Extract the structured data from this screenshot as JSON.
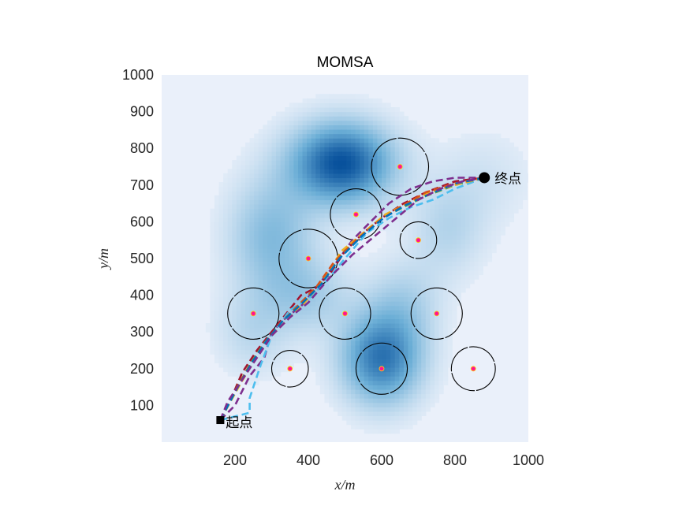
{
  "chart_data": {
    "type": "scatter",
    "title": "MOMSA",
    "xlabel": "x/m",
    "ylabel": "y/m",
    "xlim": [
      0,
      1000
    ],
    "ylim": [
      0,
      1000
    ],
    "xticks": [
      200,
      400,
      600,
      800,
      1000
    ],
    "yticks": [
      100,
      200,
      300,
      400,
      500,
      600,
      700,
      800,
      900,
      1000
    ],
    "grid": false,
    "start": {
      "label": "起点",
      "x": 160,
      "y": 60
    },
    "end": {
      "label": "终点",
      "x": 880,
      "y": 720
    },
    "threat_circles": [
      {
        "x": 650,
        "y": 750,
        "r": 78
      },
      {
        "x": 530,
        "y": 620,
        "r": 70
      },
      {
        "x": 700,
        "y": 550,
        "r": 50
      },
      {
        "x": 400,
        "y": 500,
        "r": 80
      },
      {
        "x": 250,
        "y": 350,
        "r": 70
      },
      {
        "x": 500,
        "y": 350,
        "r": 70
      },
      {
        "x": 750,
        "y": 350,
        "r": 70
      },
      {
        "x": 350,
        "y": 200,
        "r": 50
      },
      {
        "x": 600,
        "y": 200,
        "r": 70
      },
      {
        "x": 850,
        "y": 200,
        "r": 60
      }
    ],
    "terrain_peaks": [
      {
        "x": 490,
        "y": 760,
        "amp": 1.0,
        "sx": 95,
        "sy": 75
      },
      {
        "x": 600,
        "y": 230,
        "amp": 0.8,
        "sx": 75,
        "sy": 85
      },
      {
        "x": 300,
        "y": 560,
        "amp": 0.4,
        "sx": 80,
        "sy": 110
      },
      {
        "x": 400,
        "y": 400,
        "amp": 0.25,
        "sx": 80,
        "sy": 70
      },
      {
        "x": 660,
        "y": 380,
        "amp": 0.22,
        "sx": 70,
        "sy": 80
      },
      {
        "x": 780,
        "y": 580,
        "amp": 0.2,
        "sx": 70,
        "sy": 90
      },
      {
        "x": 250,
        "y": 300,
        "amp": 0.18,
        "sx": 70,
        "sy": 80
      },
      {
        "x": 880,
        "y": 720,
        "amp": 0.1,
        "sx": 90,
        "sy": 90
      }
    ],
    "series": [
      {
        "color": "#7E2F8E",
        "x": [
          160,
          200,
          240,
          280,
          300,
          340,
          380,
          420,
          470,
          520,
          570,
          620,
          680,
          740,
          800,
          880
        ],
        "y": [
          60,
          100,
          180,
          230,
          300,
          340,
          370,
          420,
          480,
          550,
          600,
          650,
          690,
          710,
          720,
          720
        ]
      },
      {
        "color": "#A2142F",
        "x": [
          160,
          190,
          220,
          260,
          300,
          340,
          380,
          420,
          460,
          500,
          550,
          600,
          660,
          720,
          800,
          880
        ],
        "y": [
          60,
          120,
          190,
          250,
          300,
          350,
          400,
          420,
          460,
          520,
          570,
          610,
          650,
          680,
          710,
          720
        ]
      },
      {
        "color": "#4DBEEE",
        "x": [
          160,
          240,
          240,
          270,
          300,
          350,
          400,
          450,
          500,
          560,
          620,
          680,
          740,
          800,
          880
        ],
        "y": [
          60,
          80,
          120,
          210,
          290,
          360,
          390,
          440,
          500,
          570,
          610,
          640,
          660,
          690,
          720
        ]
      },
      {
        "color": "#77AC30",
        "x": [
          160,
          200,
          240,
          280,
          330,
          380,
          430,
          490,
          540,
          600,
          660,
          720,
          800,
          880
        ],
        "y": [
          60,
          140,
          210,
          270,
          330,
          380,
          430,
          510,
          560,
          610,
          640,
          670,
          700,
          720
        ]
      },
      {
        "color": "#EDB120",
        "x": [
          160,
          210,
          250,
          290,
          340,
          390,
          440,
          490,
          550,
          610,
          670,
          730,
          800,
          880
        ],
        "y": [
          60,
          150,
          220,
          280,
          330,
          380,
          440,
          520,
          570,
          620,
          650,
          680,
          700,
          720
        ]
      },
      {
        "color": "#D95319",
        "x": [
          160,
          195,
          235,
          275,
          320,
          370,
          420,
          470,
          530,
          590,
          650,
          720,
          800,
          880
        ],
        "y": [
          60,
          130,
          200,
          260,
          320,
          370,
          420,
          490,
          550,
          600,
          640,
          680,
          705,
          720
        ]
      },
      {
        "color": "#0072BD",
        "x": [
          160,
          205,
          245,
          285,
          330,
          380,
          435,
          485,
          545,
          605,
          665,
          730,
          805,
          880
        ],
        "y": [
          60,
          145,
          215,
          275,
          330,
          375,
          430,
          500,
          560,
          610,
          645,
          675,
          705,
          720
        ]
      },
      {
        "color": "#7E2F8E",
        "x": [
          160,
          180,
          220,
          260,
          300,
          350,
          400,
          460,
          520,
          580,
          640,
          700,
          760,
          820,
          880
        ],
        "y": [
          60,
          110,
          170,
          230,
          290,
          340,
          380,
          450,
          510,
          560,
          610,
          660,
          690,
          710,
          720
        ]
      }
    ]
  }
}
